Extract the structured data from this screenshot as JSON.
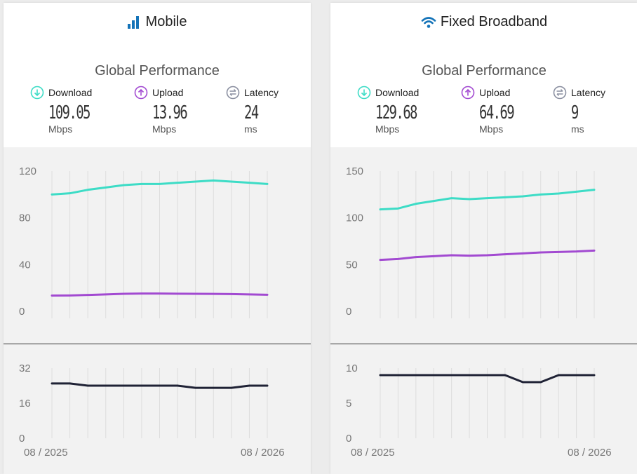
{
  "colors": {
    "download": "#3ddcc6",
    "upload": "#a24ad1",
    "latency": "#1f2235",
    "latency_icon": "#8a8fa0",
    "header_icon": "#1473b8",
    "grid": "#dddddd",
    "tick": "#777777"
  },
  "panels": [
    {
      "title": "Mobile",
      "icon": "signal-bars-icon",
      "subtitle": "Global Performance",
      "metrics": {
        "download": {
          "label": "Download",
          "value": "109.05",
          "unit": "Mbps"
        },
        "upload": {
          "label": "Upload",
          "value": "13.96",
          "unit": "Mbps"
        },
        "latency": {
          "label": "Latency",
          "value": "24",
          "unit": "ms"
        }
      }
    },
    {
      "title": "Fixed Broadband",
      "icon": "wifi-icon",
      "subtitle": "Global Performance",
      "metrics": {
        "download": {
          "label": "Download",
          "value": "129.68",
          "unit": "Mbps"
        },
        "upload": {
          "label": "Upload",
          "value": "64.69",
          "unit": "Mbps"
        },
        "latency": {
          "label": "Latency",
          "value": "9",
          "unit": "ms"
        }
      }
    }
  ],
  "chart_data": [
    {
      "type": "line",
      "panel": "Mobile",
      "x_ticks": [
        "08 / 2025",
        "08 / 2026"
      ],
      "x": [
        "08 / 2025",
        "",
        "",
        "",
        "",
        "",
        "",
        "",
        "",
        "",
        "",
        "",
        "08 / 2026"
      ],
      "series": [
        {
          "name": "Download",
          "values": [
            100,
            101,
            104,
            106,
            108,
            109,
            109,
            110,
            111,
            112,
            111,
            110,
            109
          ]
        },
        {
          "name": "Upload",
          "values": [
            13.5,
            13.6,
            14,
            14.5,
            15,
            15.2,
            15.2,
            15.1,
            15,
            14.9,
            14.8,
            14.5,
            14.2
          ]
        }
      ],
      "yticks": [
        0,
        40,
        80,
        120
      ],
      "ylim": [
        0,
        120
      ],
      "latency": {
        "series": [
          {
            "name": "Latency",
            "values": [
              25,
              25,
              24,
              24,
              24,
              24,
              24,
              24,
              23,
              23,
              23,
              24,
              24
            ]
          }
        ],
        "yticks": [
          0,
          16,
          32
        ],
        "ylim": [
          0,
          32
        ]
      }
    },
    {
      "type": "line",
      "panel": "Fixed Broadband",
      "x_ticks": [
        "08 / 2025",
        "08 / 2026"
      ],
      "x": [
        "08 / 2025",
        "",
        "",
        "",
        "",
        "",
        "",
        "",
        "",
        "",
        "",
        "",
        "08 / 2026"
      ],
      "series": [
        {
          "name": "Download",
          "values": [
            109,
            110,
            115,
            118,
            121,
            120,
            121,
            122,
            123,
            125,
            126,
            128,
            130
          ]
        },
        {
          "name": "Upload",
          "values": [
            55,
            56,
            58,
            59,
            60,
            59.5,
            60,
            61,
            62,
            63,
            63.5,
            64,
            65
          ]
        }
      ],
      "yticks": [
        0,
        50,
        100,
        150
      ],
      "ylim": [
        0,
        150
      ],
      "latency": {
        "series": [
          {
            "name": "Latency",
            "values": [
              9,
              9,
              9,
              9,
              9,
              9,
              9,
              9,
              8,
              8,
              9,
              9,
              9
            ]
          }
        ],
        "yticks": [
          0,
          5,
          10
        ],
        "ylim": [
          0,
          10
        ]
      }
    }
  ]
}
